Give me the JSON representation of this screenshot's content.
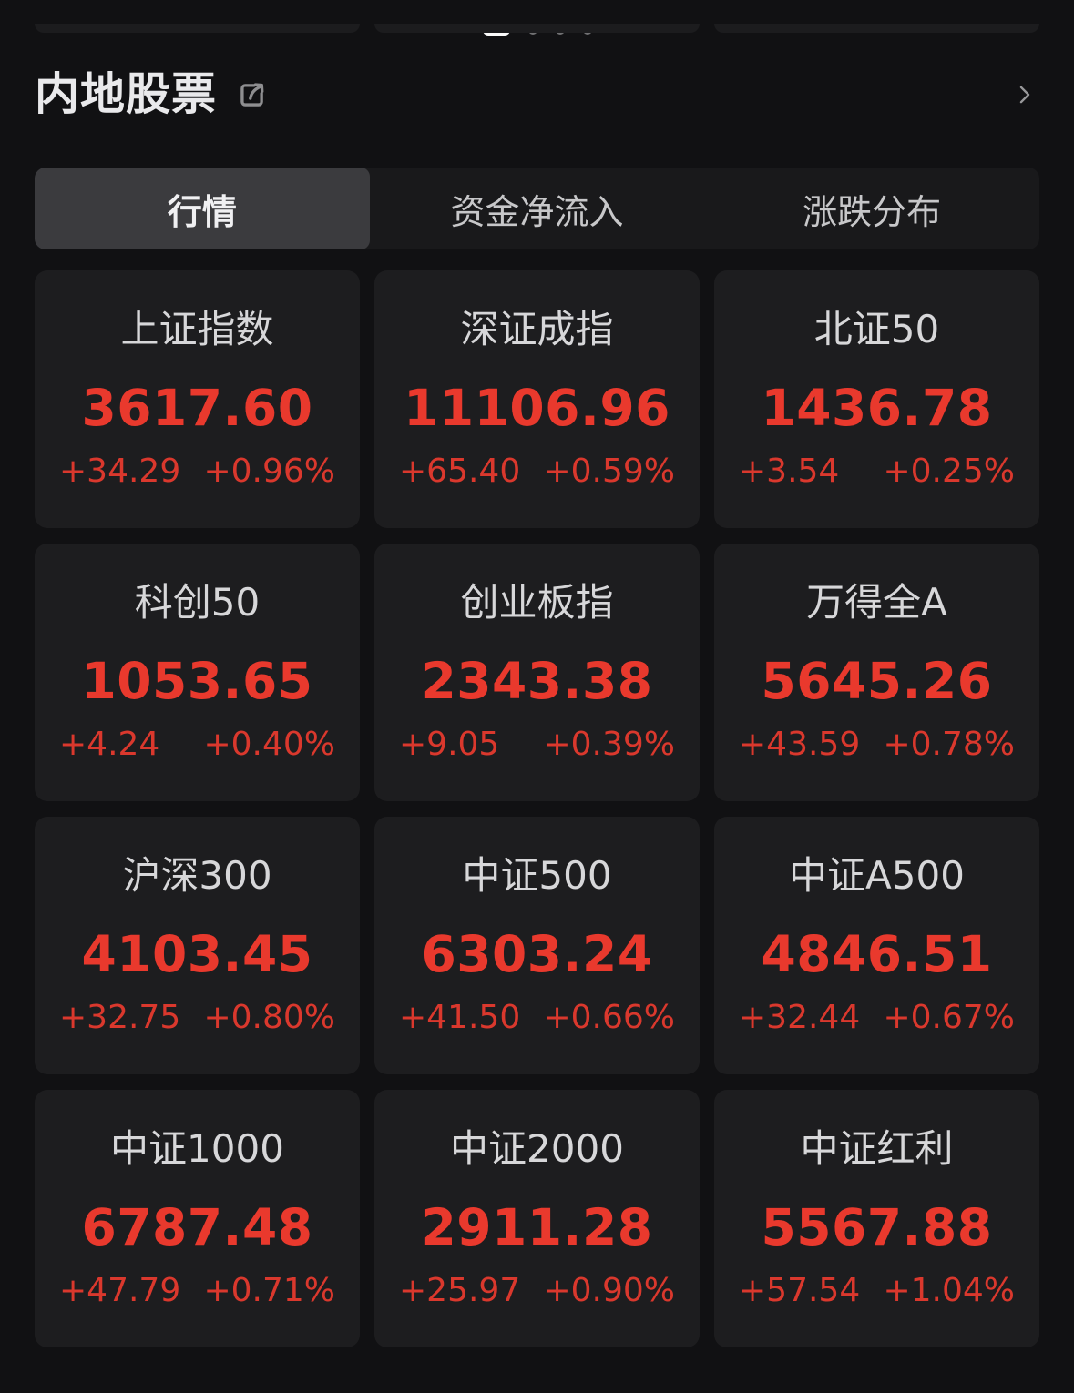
{
  "carousel": {
    "dot_count": 4,
    "active_index": 0
  },
  "header": {
    "title": "内地股票",
    "share_icon": "share-icon",
    "more_icon": "chevron-right-icon"
  },
  "tabs": [
    {
      "label": "行情",
      "active": true
    },
    {
      "label": "资金净流入",
      "active": false
    },
    {
      "label": "涨跌分布",
      "active": false
    }
  ],
  "colors": {
    "up_value": "#e9392d",
    "up_change": "#da382d",
    "card_bg": "#1d1d1f",
    "tab_active_bg": "#3b3b3e"
  },
  "indices": [
    {
      "name": "上证指数",
      "value": "3617.60",
      "change": "+34.29",
      "change_pct": "+0.96%"
    },
    {
      "name": "深证成指",
      "value": "11106.96",
      "change": "+65.40",
      "change_pct": "+0.59%"
    },
    {
      "name": "北证50",
      "value": "1436.78",
      "change": "+3.54",
      "change_pct": "+0.25%"
    },
    {
      "name": "科创50",
      "value": "1053.65",
      "change": "+4.24",
      "change_pct": "+0.40%"
    },
    {
      "name": "创业板指",
      "value": "2343.38",
      "change": "+9.05",
      "change_pct": "+0.39%"
    },
    {
      "name": "万得全A",
      "value": "5645.26",
      "change": "+43.59",
      "change_pct": "+0.78%"
    },
    {
      "name": "沪深300",
      "value": "4103.45",
      "change": "+32.75",
      "change_pct": "+0.80%"
    },
    {
      "name": "中证500",
      "value": "6303.24",
      "change": "+41.50",
      "change_pct": "+0.66%"
    },
    {
      "name": "中证A500",
      "value": "4846.51",
      "change": "+32.44",
      "change_pct": "+0.67%"
    },
    {
      "name": "中证1000",
      "value": "6787.48",
      "change": "+47.79",
      "change_pct": "+0.71%"
    },
    {
      "name": "中证2000",
      "value": "2911.28",
      "change": "+25.97",
      "change_pct": "+0.90%"
    },
    {
      "name": "中证红利",
      "value": "5567.88",
      "change": "+57.54",
      "change_pct": "+1.04%"
    }
  ]
}
